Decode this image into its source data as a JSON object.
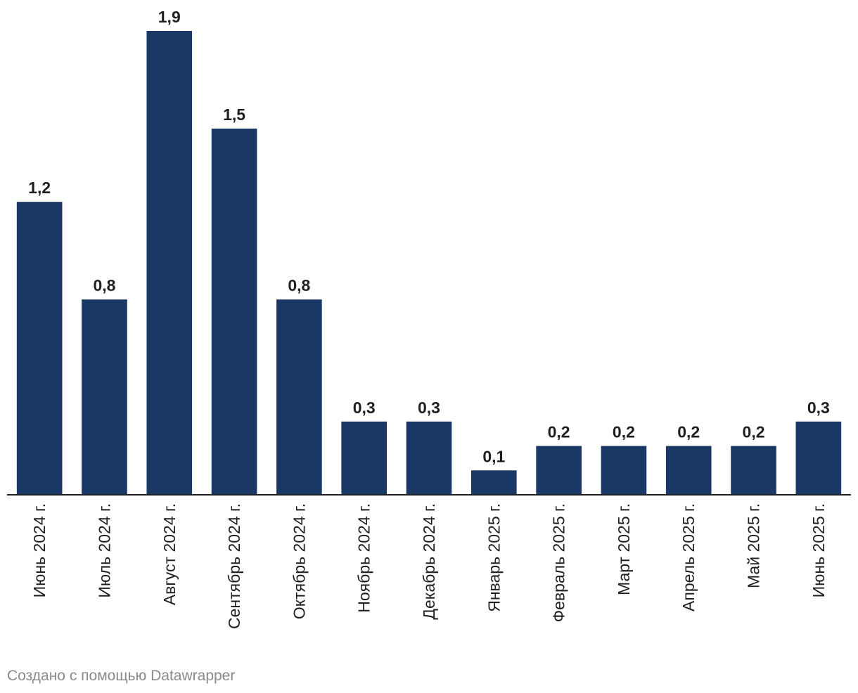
{
  "chart_data": {
    "type": "bar",
    "categories": [
      "Июнь 2024 г.",
      "Июль 2024 г.",
      "Август 2024 г.",
      "Сентябрь 2024 г.",
      "Октябрь 2024 г.",
      "Ноябрь 2024 г.",
      "Декабрь 2024 г.",
      "Январь 2025 г.",
      "Февраль 2025 г.",
      "Март 2025 г.",
      "Апрель 2025 г.",
      "Май 2025 г.",
      "Июнь 2025 г."
    ],
    "values": [
      1.2,
      0.8,
      1.9,
      1.5,
      0.8,
      0.3,
      0.3,
      0.1,
      0.2,
      0.2,
      0.2,
      0.2,
      0.3
    ],
    "value_labels": [
      "1,2",
      "0,8",
      "1,9",
      "1,5",
      "0,8",
      "0,3",
      "0,3",
      "0,1",
      "0,2",
      "0,2",
      "0,2",
      "0,2",
      "0,3"
    ],
    "title": "",
    "xlabel": "",
    "ylabel": "",
    "ylim": [
      0,
      1.9
    ],
    "grid": false,
    "bar_color": "#1a3866"
  },
  "footer": {
    "credit": "Создано с помощью Datawrapper"
  }
}
